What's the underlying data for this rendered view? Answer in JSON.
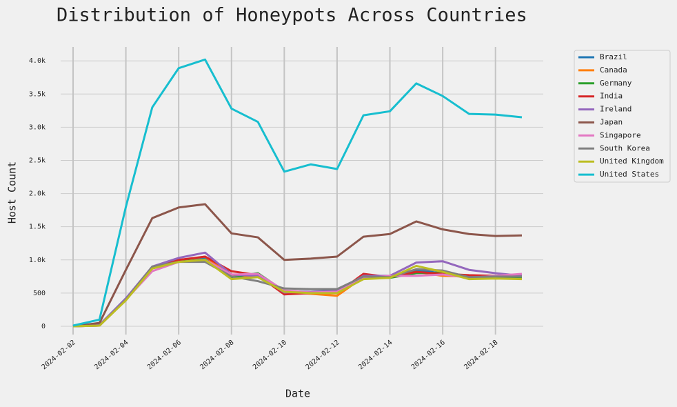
{
  "chart_data": {
    "type": "line",
    "title": "Distribution of Honeypots Across Countries",
    "x_label": "Date",
    "y_label": "Host Count",
    "x": [
      "2024-02-02",
      "2024-02-03",
      "2024-02-04",
      "2024-02-05",
      "2024-02-06",
      "2024-02-07",
      "2024-02-08",
      "2024-02-09",
      "2024-02-10",
      "2024-02-11",
      "2024-02-12",
      "2024-02-13",
      "2024-02-14",
      "2024-02-15",
      "2024-02-16",
      "2024-02-17",
      "2024-02-18",
      "2024-02-19"
    ],
    "xticks": [
      "2024-02-02",
      "2024-02-04",
      "2024-02-06",
      "2024-02-08",
      "2024-02-10",
      "2024-02-12",
      "2024-02-14",
      "2024-02-16",
      "2024-02-18"
    ],
    "ylim": [
      -125,
      4210
    ],
    "yticks": [
      0,
      500,
      {
        "value": 1000,
        "label": "1.0k"
      },
      {
        "value": 1500,
        "label": "1.5k"
      },
      {
        "value": 2000,
        "label": "2.0k"
      },
      {
        "value": 2500,
        "label": "2.5k"
      },
      {
        "value": 3000,
        "label": "3.0k"
      },
      {
        "value": 3500,
        "label": "3.5k"
      },
      {
        "value": 4000,
        "label": "4.0k"
      }
    ],
    "grid": true,
    "legend": "outside-right",
    "series": [
      {
        "name": "Brazil",
        "color": "#1f77b4",
        "values": [
          0,
          20,
          420,
          880,
          990,
          1020,
          750,
          760,
          530,
          520,
          540,
          740,
          740,
          840,
          800,
          760,
          760,
          760
        ]
      },
      {
        "name": "Canada",
        "color": "#ff7f0e",
        "values": [
          0,
          10,
          400,
          870,
          990,
          1050,
          760,
          760,
          520,
          490,
          460,
          740,
          740,
          820,
          760,
          750,
          720,
          730
        ]
      },
      {
        "name": "Germany",
        "color": "#2ca02c",
        "values": [
          0,
          20,
          410,
          880,
          980,
          1000,
          740,
          800,
          530,
          510,
          510,
          740,
          730,
          800,
          810,
          720,
          740,
          740
        ]
      },
      {
        "name": "India",
        "color": "#d62728",
        "values": [
          0,
          20,
          410,
          880,
          1000,
          1050,
          830,
          770,
          480,
          500,
          500,
          790,
          740,
          820,
          790,
          770,
          760,
          760
        ]
      },
      {
        "name": "Ireland",
        "color": "#9467bd",
        "values": [
          0,
          20,
          420,
          900,
          1030,
          1110,
          780,
          760,
          510,
          520,
          530,
          760,
          760,
          960,
          980,
          850,
          800,
          760
        ]
      },
      {
        "name": "Japan",
        "color": "#8c564b",
        "values": [
          0,
          50,
          850,
          1630,
          1790,
          1840,
          1400,
          1340,
          1000,
          1020,
          1050,
          1350,
          1390,
          1580,
          1460,
          1390,
          1360,
          1370
        ]
      },
      {
        "name": "Singapore",
        "color": "#e377c2",
        "values": [
          0,
          10,
          400,
          830,
          970,
          1000,
          780,
          790,
          540,
          510,
          520,
          720,
          760,
          760,
          780,
          730,
          760,
          790
        ]
      },
      {
        "name": "South Korea",
        "color": "#7f7f7f",
        "values": [
          0,
          10,
          400,
          900,
          970,
          970,
          750,
          680,
          570,
          560,
          560,
          750,
          740,
          860,
          840,
          740,
          750,
          750
        ]
      },
      {
        "name": "United Kingdom",
        "color": "#bcbd22",
        "values": [
          0,
          10,
          390,
          870,
          970,
          1000,
          710,
          740,
          520,
          500,
          500,
          710,
          730,
          910,
          820,
          710,
          720,
          710
        ]
      },
      {
        "name": "United States",
        "color": "#17becf",
        "values": [
          10,
          100,
          1800,
          3300,
          3890,
          4020,
          3280,
          3080,
          2330,
          2440,
          2370,
          3180,
          3240,
          3660,
          3470,
          3200,
          3190,
          3150
        ]
      }
    ]
  }
}
